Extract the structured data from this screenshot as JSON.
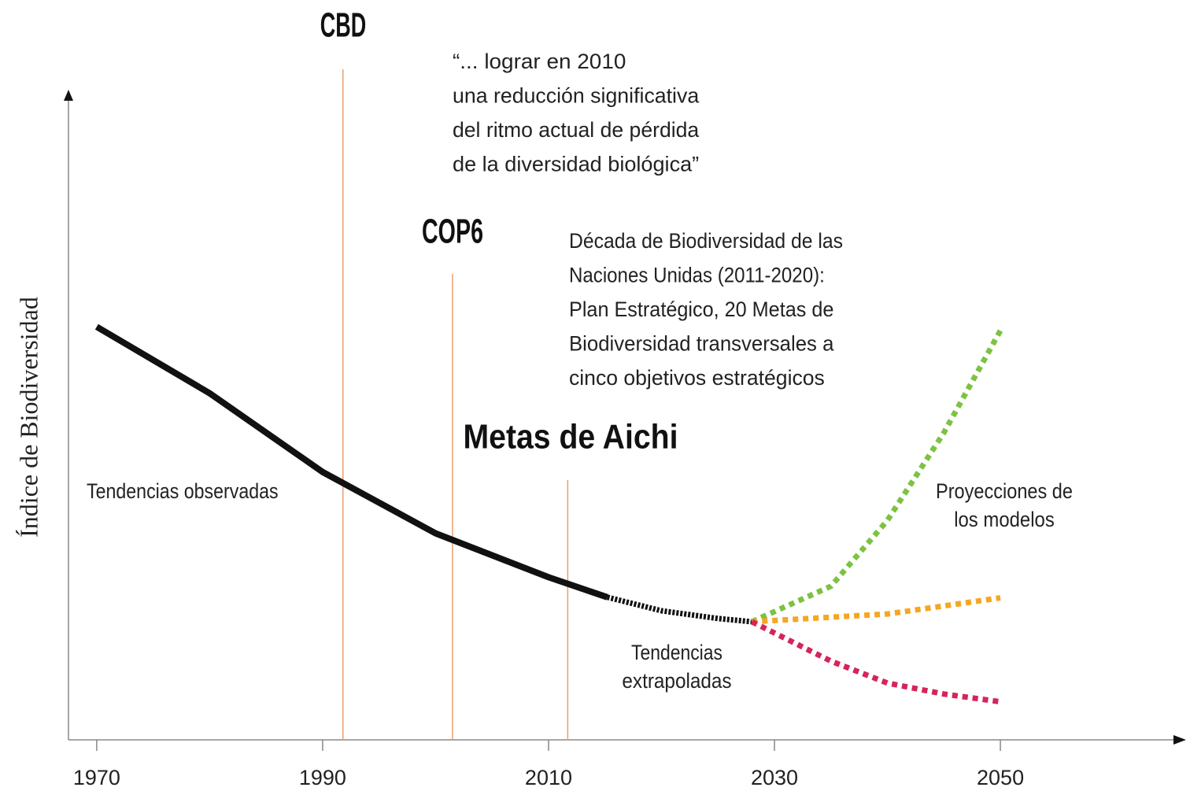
{
  "chart_data": {
    "type": "line",
    "ylabel": "Índice de Biodiversidad",
    "xlim": [
      1967.5,
      2066.3
    ],
    "ylim": [
      0,
      100
    ],
    "xticks": [
      1970,
      1990,
      2010,
      2030,
      2050
    ],
    "series": [
      {
        "color": "#111111",
        "style": "solid",
        "x": [
          1970,
          1980,
          1990,
          2000,
          2010,
          2015.2
        ],
        "values": [
          64,
          53.7,
          41.5,
          32,
          25.2,
          22.1
        ]
      },
      {
        "color": "#111111",
        "style": "dotted",
        "x": [
          2015.2,
          2020,
          2025,
          2028
        ],
        "values": [
          22.1,
          20,
          18.8,
          18.3
        ]
      },
      {
        "color": "#7dc242",
        "style": "dotted",
        "x": [
          2028,
          2035,
          2040,
          2045,
          2050
        ],
        "values": [
          18.3,
          23.8,
          34,
          47.6,
          63.4
        ]
      },
      {
        "color": "#f5a623",
        "style": "dotted",
        "x": [
          2028,
          2040,
          2050
        ],
        "values": [
          18.3,
          19.5,
          22
        ]
      },
      {
        "color": "#d6245a",
        "style": "dotted",
        "x": [
          2028,
          2035,
          2040,
          2045,
          2050
        ],
        "values": [
          18.3,
          12.2,
          8.8,
          7.1,
          5.9
        ]
      }
    ],
    "events": [
      {
        "label": "CBD",
        "x": 1991.8
      },
      {
        "label": "COP6",
        "x": 2001.5
      },
      {
        "label": "Metas de Aichi",
        "x": 2011.7
      }
    ],
    "event_color": "#e8a070",
    "annotations": [
      {
        "lines": [
          "“... lograr en 2010",
          "una reducción significativa",
          "del ritmo actual de pérdida",
          "de la diversidad biológica”"
        ]
      },
      {
        "lines": [
          "Década de Biodiversidad de las",
          "Naciones Unidas (2011-2020):",
          "Plan Estratégico, 20 Metas de",
          "Biodiversidad transversales a",
          "cinco objetivos estratégicos"
        ]
      },
      {
        "lines": [
          "Tendencias observadas"
        ]
      },
      {
        "lines": [
          "Tendencias",
          "extrapoladas"
        ]
      },
      {
        "lines": [
          "Proyecciones de",
          "los modelos"
        ]
      }
    ]
  }
}
